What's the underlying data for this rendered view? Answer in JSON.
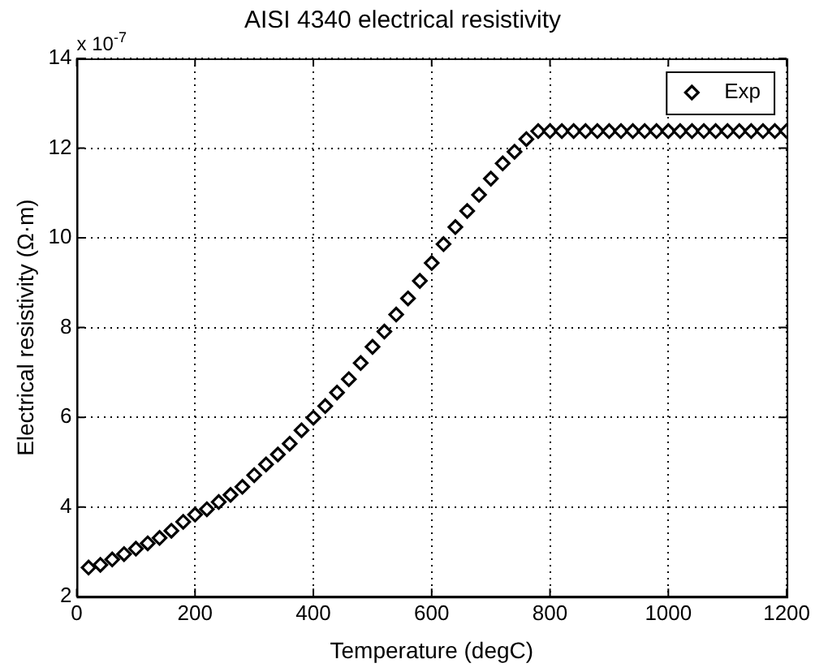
{
  "chart_data": {
    "type": "scatter",
    "title": "AISI 4340 electrical resistivity",
    "xlabel": "Temperature (degC)",
    "ylabel": "Electrical resistivity (Ω·m)",
    "annotations": [
      "x 10$^{-7}$"
    ],
    "x": [
      20,
      40,
      60,
      80,
      100,
      120,
      140,
      160,
      180,
      200,
      220,
      240,
      260,
      280,
      300,
      320,
      340,
      360,
      380,
      400,
      420,
      440,
      460,
      480,
      500,
      520,
      540,
      560,
      580,
      600,
      620,
      640,
      660,
      680,
      700,
      720,
      740,
      760,
      780,
      800,
      820,
      840,
      860,
      880,
      900,
      920,
      940,
      960,
      980,
      1000,
      1020,
      1040,
      1060,
      1080,
      1100,
      1120,
      1140,
      1160,
      1180,
      1200
    ],
    "series": [
      {
        "name": "Exp",
        "color": "#000000",
        "values": [
          2.65,
          2.71,
          2.83,
          2.95,
          3.07,
          3.19,
          3.31,
          3.47,
          3.67,
          3.83,
          3.95,
          4.11,
          4.27,
          4.45,
          4.71,
          4.95,
          5.17,
          5.41,
          5.71,
          5.99,
          6.25,
          6.55,
          6.85,
          7.21,
          7.57,
          7.91,
          8.29,
          8.65,
          9.04,
          9.44,
          9.86,
          10.24,
          10.6,
          10.96,
          11.32,
          11.66,
          11.92,
          12.2,
          12.38,
          12.38,
          12.38,
          12.38,
          12.38,
          12.38,
          12.38,
          12.38,
          12.38,
          12.38,
          12.38,
          12.38,
          12.38,
          12.38,
          12.38,
          12.38,
          12.38,
          12.38,
          12.38,
          12.38,
          12.38,
          12.38
        ]
      }
    ],
    "xlim": [
      0,
      1200
    ],
    "xticks": [
      0,
      200,
      400,
      600,
      800,
      1000,
      1200
    ],
    "ylim": [
      2,
      14
    ],
    "yticks": [
      2,
      4,
      6,
      8,
      10,
      12,
      14
    ],
    "grid": true,
    "legend": "top right",
    "marker": "diamond"
  }
}
